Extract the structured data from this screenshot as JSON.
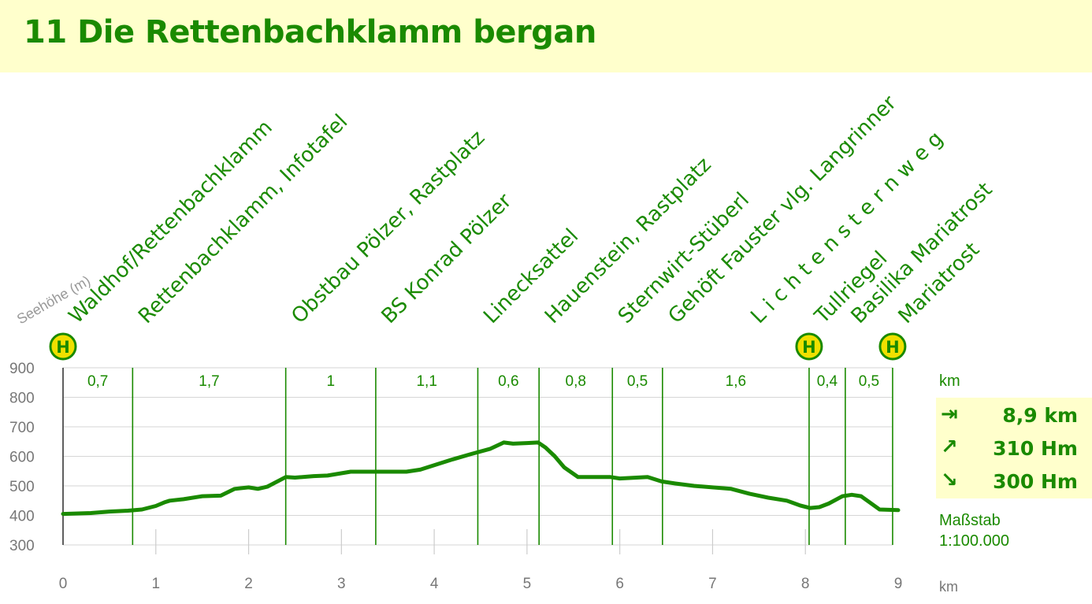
{
  "title": "11  Die Rettenbachklamm bergan",
  "ylabel": "Seehöhe (m)",
  "stats": {
    "unit_label": "km",
    "distance": "8,9 km",
    "ascent": "310 Hm",
    "descent": "300 Hm",
    "icons": {
      "distance": "arrow-right-bar-icon",
      "ascent": "arrow-up-right-icon",
      "descent": "arrow-down-right-icon"
    }
  },
  "scale": {
    "label": "Maßstab",
    "value": "1:100.000"
  },
  "xunit": "km",
  "colors": {
    "line": "#1a8a00",
    "text": "#1a8a00",
    "header_bg": "#ffffcc",
    "bus_fill": "#f0e000"
  },
  "chart_data": {
    "type": "line",
    "xlim": [
      0,
      9
    ],
    "ylim": [
      300,
      900
    ],
    "xticks": [
      "0",
      "1",
      "2",
      "3",
      "4",
      "5",
      "6",
      "7",
      "8",
      "9"
    ],
    "yticks": [
      "300",
      "400",
      "500",
      "600",
      "700",
      "800",
      "900"
    ],
    "points": [
      [
        0,
        405
      ],
      [
        0.3,
        408
      ],
      [
        0.5,
        413
      ],
      [
        0.7,
        416
      ],
      [
        0.85,
        420
      ],
      [
        1.0,
        432
      ],
      [
        1.1,
        445
      ],
      [
        1.15,
        450
      ],
      [
        1.3,
        455
      ],
      [
        1.5,
        465
      ],
      [
        1.7,
        467
      ],
      [
        1.85,
        490
      ],
      [
        2.0,
        495
      ],
      [
        2.1,
        490
      ],
      [
        2.2,
        497
      ],
      [
        2.4,
        530
      ],
      [
        2.5,
        528
      ],
      [
        2.7,
        533
      ],
      [
        2.85,
        535
      ],
      [
        3.1,
        548
      ],
      [
        3.3,
        548
      ],
      [
        3.5,
        548
      ],
      [
        3.7,
        548
      ],
      [
        3.85,
        555
      ],
      [
        4.0,
        570
      ],
      [
        4.2,
        590
      ],
      [
        4.4,
        608
      ],
      [
        4.6,
        625
      ],
      [
        4.75,
        647
      ],
      [
        4.85,
        643
      ],
      [
        5.0,
        645
      ],
      [
        5.12,
        647
      ],
      [
        5.2,
        630
      ],
      [
        5.3,
        600
      ],
      [
        5.4,
        563
      ],
      [
        5.55,
        530
      ],
      [
        5.7,
        530
      ],
      [
        5.9,
        530
      ],
      [
        6.0,
        525
      ],
      [
        6.3,
        530
      ],
      [
        6.45,
        515
      ],
      [
        6.6,
        508
      ],
      [
        6.8,
        500
      ],
      [
        7.0,
        495
      ],
      [
        7.2,
        490
      ],
      [
        7.4,
        473
      ],
      [
        7.6,
        460
      ],
      [
        7.8,
        450
      ],
      [
        7.95,
        433
      ],
      [
        8.05,
        425
      ],
      [
        8.15,
        428
      ],
      [
        8.25,
        440
      ],
      [
        8.4,
        465
      ],
      [
        8.5,
        470
      ],
      [
        8.6,
        465
      ],
      [
        8.8,
        420
      ],
      [
        9.0,
        418
      ]
    ],
    "segments": [
      {
        "x0": 0.0,
        "x1": 0.75,
        "label": "0,7"
      },
      {
        "x0": 0.75,
        "x1": 2.4,
        "label": "1,7"
      },
      {
        "x0": 2.4,
        "x1": 3.37,
        "label": "1"
      },
      {
        "x0": 3.37,
        "x1": 4.47,
        "label": "1,1"
      },
      {
        "x0": 4.47,
        "x1": 5.13,
        "label": "0,6"
      },
      {
        "x0": 5.13,
        "x1": 5.92,
        "label": "0,8"
      },
      {
        "x0": 5.92,
        "x1": 6.46,
        "label": "0,5"
      },
      {
        "x0": 6.46,
        "x1": 8.04,
        "label": "1,6"
      },
      {
        "x0": 8.04,
        "x1": 8.43,
        "label": "0,4"
      },
      {
        "x0": 8.43,
        "x1": 8.94,
        "label": "0,5"
      }
    ],
    "waypoints": [
      {
        "x": 0.0,
        "label": "Waldhof/Rettenbachklamm",
        "bus": true
      },
      {
        "x": 0.75,
        "label": "Rettenbachklamm, Infotafel",
        "bus": false
      },
      {
        "x": 2.4,
        "label": "Obstbau Pölzer, Rastplatz",
        "bus": false
      },
      {
        "x": 3.37,
        "label": "BS Konrad Pölzer",
        "bus": false
      },
      {
        "x": 4.47,
        "label": "Linecksattel",
        "bus": false
      },
      {
        "x": 5.13,
        "label": "Hauenstein, Rastplatz",
        "bus": false
      },
      {
        "x": 5.92,
        "label": "Sternwirt-Stüberl",
        "bus": false
      },
      {
        "x": 6.46,
        "label": "Gehöft Fauster vlg. Langrinner",
        "bus": false
      },
      {
        "x": 7.35,
        "label": "L i c h t e n s t e r n w e g",
        "bus": false
      },
      {
        "x": 8.04,
        "label": "Tullriegel",
        "bus": true
      },
      {
        "x": 8.43,
        "label": "Basilika Mariatrost",
        "bus": false
      },
      {
        "x": 8.94,
        "label": "Mariatrost",
        "bus": true
      }
    ],
    "bus_stop_label": "H"
  }
}
